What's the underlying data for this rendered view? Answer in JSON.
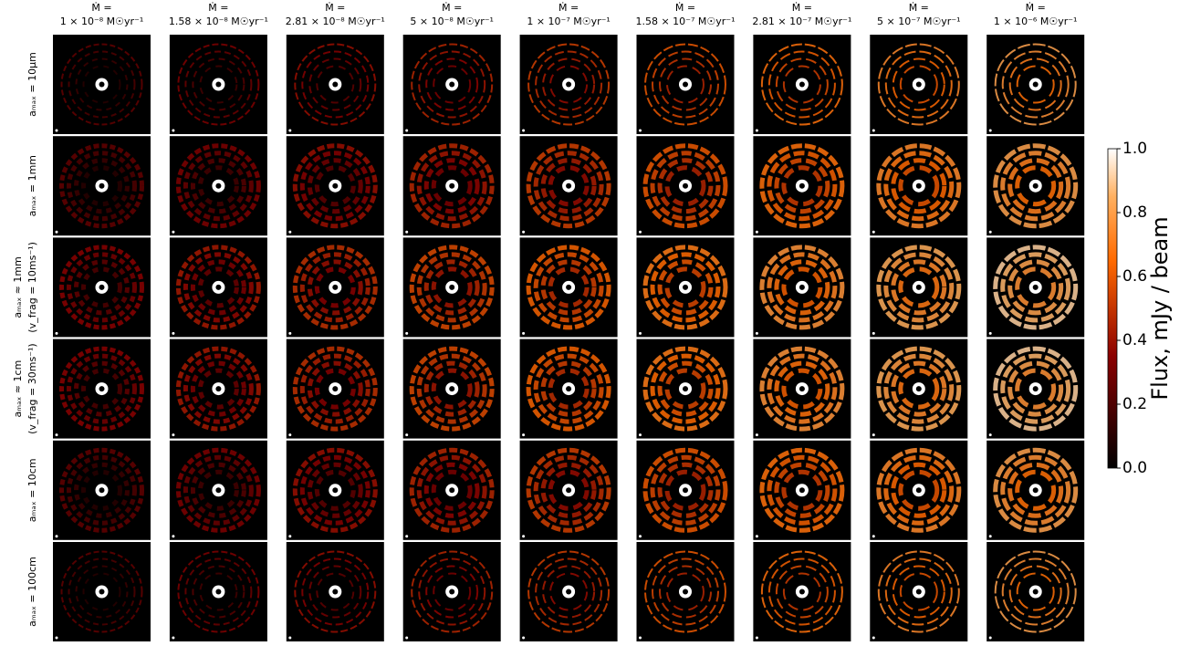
{
  "chart_data": {
    "type": "image_grid",
    "columns": [
      {
        "line1": "Ṁ =",
        "line2": "1 × 10⁻⁸ M☉yr⁻¹"
      },
      {
        "line1": "Ṁ =",
        "line2": "1.58 × 10⁻⁸ M☉yr⁻¹"
      },
      {
        "line1": "Ṁ =",
        "line2": "2.81 × 10⁻⁸ M☉yr⁻¹"
      },
      {
        "line1": "Ṁ =",
        "line2": "5 × 10⁻⁸ M☉yr⁻¹"
      },
      {
        "line1": "Ṁ =",
        "line2": "1 × 10⁻⁷ M☉yr⁻¹"
      },
      {
        "line1": "Ṁ =",
        "line2": "1.58 × 10⁻⁷ M☉yr⁻¹"
      },
      {
        "line1": "Ṁ =",
        "line2": "2.81 × 10⁻⁷ M☉yr⁻¹"
      },
      {
        "line1": "Ṁ =",
        "line2": "5 × 10⁻⁷ M☉yr⁻¹"
      },
      {
        "line1": "Ṁ =",
        "line2": "1 × 10⁻⁶ M☉yr⁻¹"
      }
    ],
    "rows": [
      {
        "lines": [
          "aₘₐₓ = 10μm"
        ]
      },
      {
        "lines": [
          "aₘₐₓ = 1mm"
        ]
      },
      {
        "lines": [
          "aₘₐₓ ≈ 1mm",
          "(v_frag = 10ms⁻¹)"
        ]
      },
      {
        "lines": [
          "aₘₐₓ ≈ 1cm",
          "(v_frag = 30ms⁻¹)"
        ]
      },
      {
        "lines": [
          "aₘₐₓ = 10cm"
        ]
      },
      {
        "lines": [
          "aₘₐₓ = 100cm"
        ]
      }
    ],
    "colorbar": {
      "label": "Flux, mJy / beam",
      "lim": [
        0,
        1
      ],
      "ticks": [
        {
          "value": 0,
          "label": "0.0"
        },
        0.2,
        0.4,
        0.6,
        0.8,
        {
          "value": 1,
          "label": "1.0"
        }
      ]
    }
  }
}
